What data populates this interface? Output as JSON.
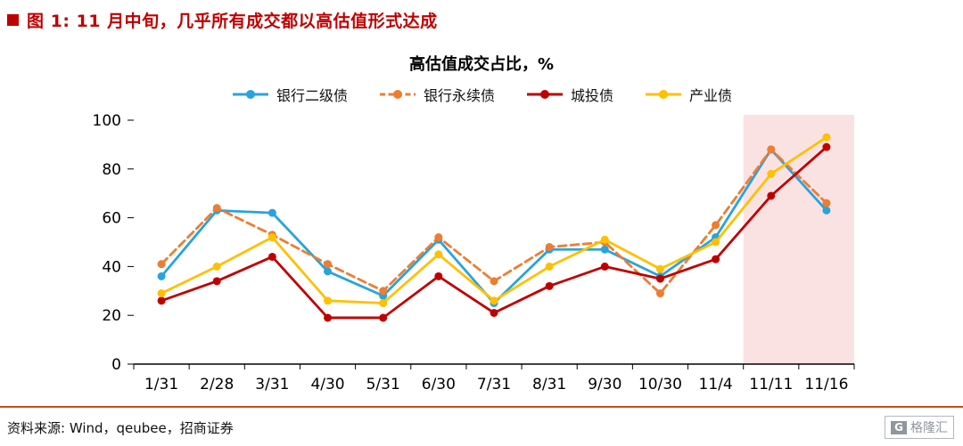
{
  "figure_header": {
    "title": "图 1: 11 月中旬，几乎所有成交都以高估值形式达成"
  },
  "chart_data": {
    "type": "line",
    "title": "高估值成交占比，%",
    "categories": [
      "1/31",
      "2/28",
      "3/31",
      "4/30",
      "5/31",
      "6/30",
      "7/31",
      "8/31",
      "9/30",
      "10/30",
      "11/4",
      "11/11",
      "11/16"
    ],
    "series": [
      {
        "name": "银行二级债",
        "color": "#29a3dc",
        "dashed": false,
        "values": [
          36,
          63,
          62,
          38,
          28,
          51,
          25,
          47,
          47,
          36,
          52,
          88,
          63
        ]
      },
      {
        "name": "银行永续债",
        "color": "#ed7d31",
        "dashed": true,
        "values": [
          41,
          64,
          53,
          41,
          30,
          52,
          34,
          48,
          50,
          29,
          57,
          88,
          66
        ]
      },
      {
        "name": "城投债",
        "color": "#c00000",
        "dashed": false,
        "values": [
          26,
          34,
          44,
          19,
          19,
          36,
          21,
          32,
          40,
          35,
          43,
          69,
          89
        ]
      },
      {
        "name": "产业债",
        "color": "#ffc000",
        "dashed": false,
        "values": [
          29,
          40,
          52,
          26,
          25,
          45,
          26,
          40,
          51,
          39,
          50,
          78,
          93
        ]
      }
    ],
    "ylim": [
      0,
      100
    ],
    "yticks": [
      0,
      20,
      40,
      60,
      80,
      100
    ],
    "highlight": {
      "from_boundary": 11,
      "color": "#fbe2e2"
    },
    "legend_position": "top",
    "grid": false
  },
  "footer": {
    "source_text": "资料来源: Wind，qeubee，招商证券",
    "logo_g": "G",
    "logo_text": "格隆汇"
  }
}
